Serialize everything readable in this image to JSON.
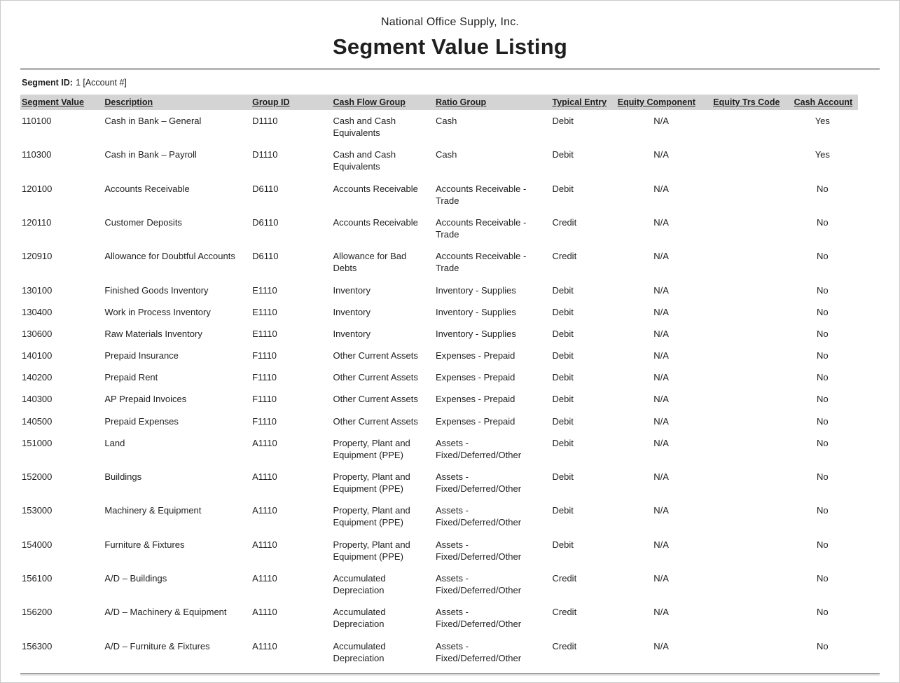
{
  "report": {
    "company": "National Office Supply, Inc.",
    "title": "Segment Value Listing",
    "segment_label": "Segment ID:",
    "segment_value": "1 [Account #]"
  },
  "colors": {
    "header_bg": "#d4d4d4",
    "rule": "#9a9a9a"
  },
  "table": {
    "columns": [
      "Segment Value",
      "Description",
      "Group ID",
      "Cash Flow Group",
      "Ratio Group",
      "Typical Entry",
      "Equity Component",
      "Equity Trs Code",
      "Cash Account"
    ],
    "rows": [
      [
        "110100",
        "Cash in Bank – General",
        "D1110",
        "Cash and Cash Equivalents",
        "Cash",
        "Debit",
        "N/A",
        "",
        "Yes"
      ],
      [
        "110300",
        "Cash in Bank – Payroll",
        "D1110",
        "Cash and Cash Equivalents",
        "Cash",
        "Debit",
        "N/A",
        "",
        "Yes"
      ],
      [
        "120100",
        "Accounts Receivable",
        "D6110",
        "Accounts Receivable",
        "Accounts Receivable - Trade",
        "Debit",
        "N/A",
        "",
        "No"
      ],
      [
        "120110",
        "Customer Deposits",
        "D6110",
        "Accounts Receivable",
        "Accounts Receivable - Trade",
        "Credit",
        "N/A",
        "",
        "No"
      ],
      [
        "120910",
        "Allowance for Doubtful Accounts",
        "D6110",
        "Allowance for Bad Debts",
        "Accounts Receivable - Trade",
        "Credit",
        "N/A",
        "",
        "No"
      ],
      [
        "130100",
        "Finished Goods Inventory",
        "E1110",
        "Inventory",
        "Inventory - Supplies",
        "Debit",
        "N/A",
        "",
        "No"
      ],
      [
        "130400",
        "Work in Process Inventory",
        "E1110",
        "Inventory",
        "Inventory - Supplies",
        "Debit",
        "N/A",
        "",
        "No"
      ],
      [
        "130600",
        "Raw Materials Inventory",
        "E1110",
        "Inventory",
        "Inventory - Supplies",
        "Debit",
        "N/A",
        "",
        "No"
      ],
      [
        "140100",
        "Prepaid Insurance",
        "F1110",
        "Other Current Assets",
        "Expenses - Prepaid",
        "Debit",
        "N/A",
        "",
        "No"
      ],
      [
        "140200",
        "Prepaid Rent",
        "F1110",
        "Other Current Assets",
        "Expenses - Prepaid",
        "Debit",
        "N/A",
        "",
        "No"
      ],
      [
        "140300",
        "AP Prepaid Invoices",
        "F1110",
        "Other Current Assets",
        "Expenses - Prepaid",
        "Debit",
        "N/A",
        "",
        "No"
      ],
      [
        "140500",
        "Prepaid Expenses",
        "F1110",
        "Other Current Assets",
        "Expenses - Prepaid",
        "Debit",
        "N/A",
        "",
        "No"
      ],
      [
        "151000",
        "Land",
        "A1110",
        "Property, Plant and Equipment (PPE)",
        "Assets - Fixed/Deferred/Other",
        "Debit",
        "N/A",
        "",
        "No"
      ],
      [
        "152000",
        "Buildings",
        "A1110",
        "Property, Plant and Equipment (PPE)",
        "Assets - Fixed/Deferred/Other",
        "Debit",
        "N/A",
        "",
        "No"
      ],
      [
        "153000",
        "Machinery & Equipment",
        "A1110",
        "Property, Plant and Equipment (PPE)",
        "Assets - Fixed/Deferred/Other",
        "Debit",
        "N/A",
        "",
        "No"
      ],
      [
        "154000",
        "Furniture & Fixtures",
        "A1110",
        "Property, Plant and Equipment (PPE)",
        "Assets - Fixed/Deferred/Other",
        "Debit",
        "N/A",
        "",
        "No"
      ],
      [
        "156100",
        "A/D – Buildings",
        "A1110",
        "Accumulated Depreciation",
        "Assets - Fixed/Deferred/Other",
        "Credit",
        "N/A",
        "",
        "No"
      ],
      [
        "156200",
        "A/D – Machinery & Equipment",
        "A1110",
        "Accumulated Depreciation",
        "Assets - Fixed/Deferred/Other",
        "Credit",
        "N/A",
        "",
        "No"
      ],
      [
        "156300",
        "A/D – Furniture & Fixtures",
        "A1110",
        "Accumulated Depreciation",
        "Assets - Fixed/Deferred/Other",
        "Credit",
        "N/A",
        "",
        "No"
      ]
    ]
  }
}
